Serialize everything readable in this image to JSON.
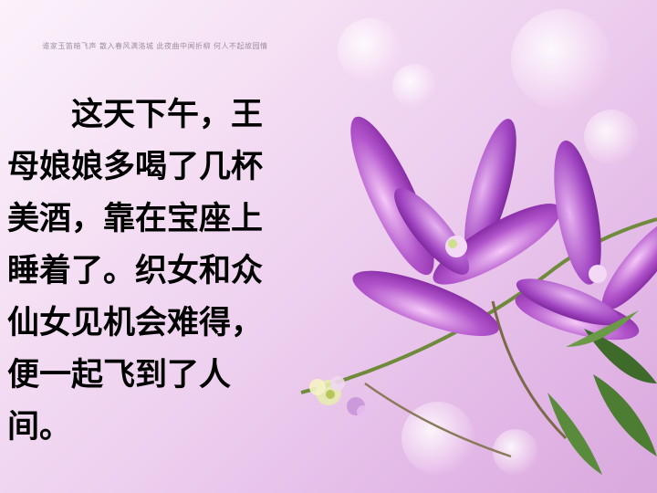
{
  "header": {
    "caption": "谁家玉笛暗飞声 散入春风满洛城 此夜曲中闻折柳 何人不起故园情"
  },
  "body": {
    "text": "　　这天下午，王\n母娘娘多喝了几杯\n美酒，靠在宝座上\n睡着了。织女和众\n仙女见机会难得，\n便一起飞到了人\n间。"
  }
}
